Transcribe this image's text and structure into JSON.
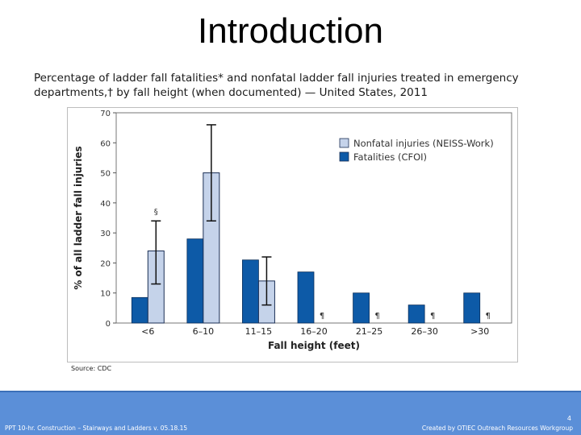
{
  "slide": {
    "title": "Introduction",
    "caption": "Percentage of ladder fall fatalities* and nonfatal ladder fall injuries treated in emergency departments,† by fall height (when documented) — United States, 2011",
    "source": "Source: CDC",
    "footer_left": "PPT 10-hr. Construction – Stairways and Ladders v. 05.18.15",
    "footer_right": "Created by OTIEC Outreach Resources Workgroup",
    "page_number": "4"
  },
  "chart_data": {
    "type": "bar",
    "categories": [
      "<6",
      "6–10",
      "11–15",
      "16–20",
      "21–25",
      "26–30",
      ">30"
    ],
    "series": [
      {
        "name": "Nonfatal injuries (NEISS-Work)",
        "values": [
          24,
          50,
          14,
          null,
          null,
          null,
          null
        ],
        "error_low": [
          13,
          34,
          6,
          null,
          null,
          null,
          null
        ],
        "error_high": [
          34,
          66,
          22,
          null,
          null,
          null,
          null
        ],
        "color": "#c5d3ea",
        "marks": [
          "§",
          "",
          "",
          "¶",
          "¶",
          "¶",
          "¶"
        ]
      },
      {
        "name": "Fatalities (CFOI)",
        "values": [
          8.5,
          28,
          21,
          17,
          10,
          6,
          10
        ],
        "color": "#0d5aa7"
      }
    ],
    "xlabel": "Fall height (feet)",
    "ylabel": "% of all ladder fall injuries",
    "ylim": [
      0,
      70
    ],
    "yticks": [
      0,
      10,
      20,
      30,
      40,
      50,
      60,
      70
    ],
    "grid": false,
    "legend_position": "top-right"
  }
}
